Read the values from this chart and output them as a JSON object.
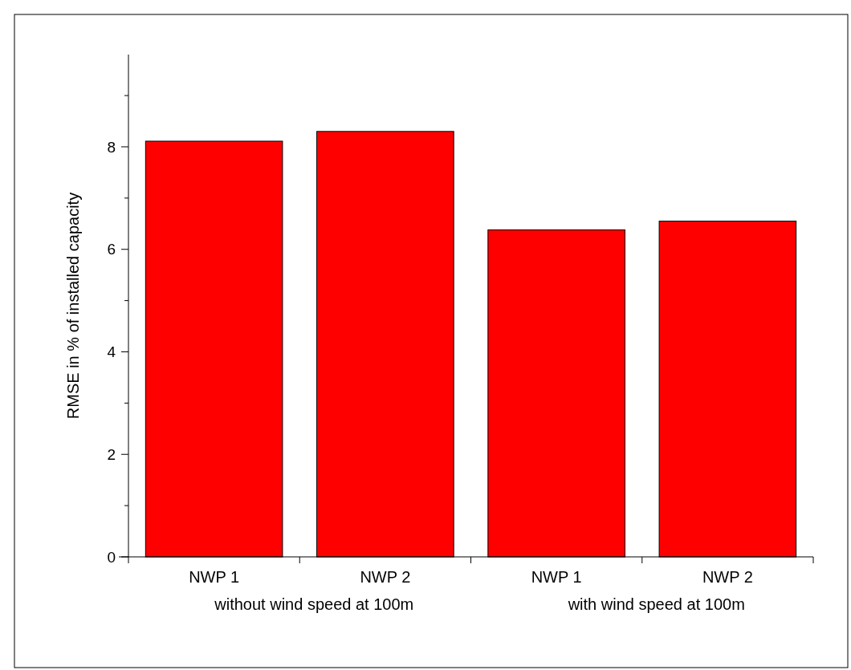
{
  "chart_data": {
    "type": "bar",
    "ylabel": "RMSE in % of installed capacity",
    "categories": [
      "NWP 1",
      "NWP 2",
      "NWP 1",
      "NWP 2"
    ],
    "values": [
      8.11,
      8.3,
      6.38,
      6.55
    ],
    "color": "#ff0000",
    "ylim": [
      0,
      9.8
    ],
    "yticks": [
      0,
      {
        "value": 1,
        "label": null
      },
      2,
      {
        "value": 3,
        "label": null
      },
      4,
      {
        "value": 5,
        "label": null
      },
      6,
      {
        "value": 7,
        "label": null
      },
      8,
      {
        "value": 9,
        "label": null
      }
    ],
    "annotations": [
      "without wind speed at 100m",
      "with wind speed at 100m"
    ],
    "grid": false
  }
}
